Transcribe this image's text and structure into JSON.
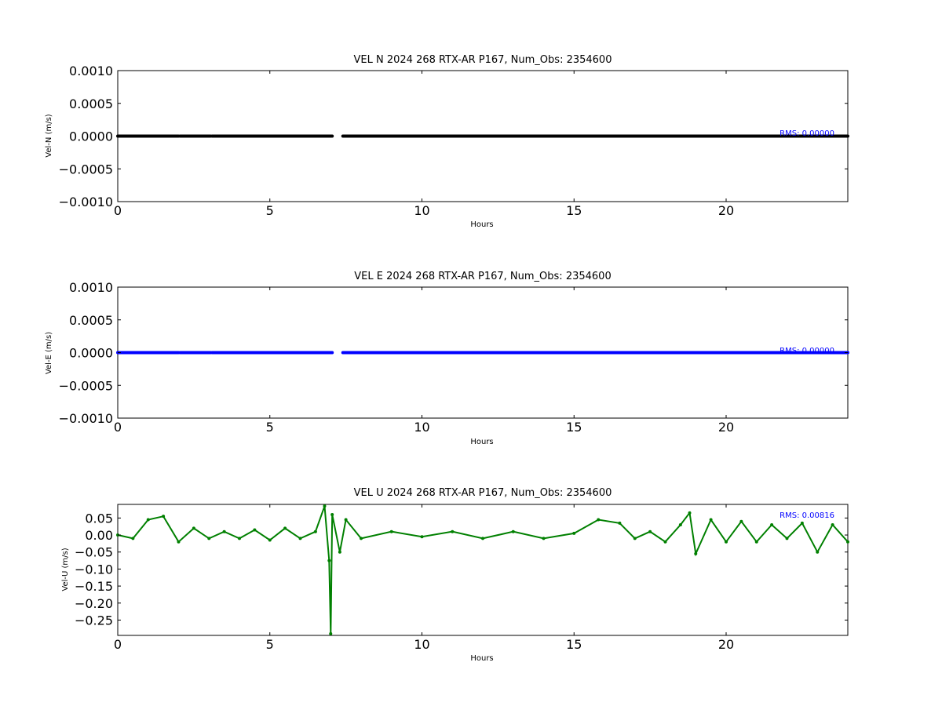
{
  "chart_data": [
    {
      "type": "scatter",
      "title": "VEL N 2024 268 RTX-AR  P167, Num_Obs: 2354600",
      "xlabel": "Hours",
      "ylabel": "Vel-N (m/s)",
      "xlim": [
        0,
        24
      ],
      "ylim": [
        -0.001,
        0.001
      ],
      "xticks": [
        0,
        5,
        10,
        15,
        20
      ],
      "xtick_labels": [
        "0",
        "5",
        "10",
        "15",
        "20"
      ],
      "yticks": [
        0.001,
        0.0005,
        0.0,
        -0.0005,
        -0.001
      ],
      "ytick_labels": [
        "0.0010",
        "0.0005",
        "0.0000",
        "−0.0005",
        "−0.0010"
      ],
      "grid": false,
      "color": "#000000",
      "rms_text": "RMS:  0.00000",
      "rms_color": "#0000ff",
      "series": [
        {
          "x": [
            0.0,
            2.0,
            2.05,
            3.05,
            3.1,
            7.05,
            7.4,
            24.0
          ],
          "y": [
            0,
            0,
            0,
            0,
            0,
            0,
            0,
            0
          ]
        }
      ]
    },
    {
      "type": "scatter",
      "title": "VEL E 2024 268 RTX-AR  P167, Num_Obs: 2354600",
      "xlabel": "Hours",
      "ylabel": "Vel-E (m/s)",
      "xlim": [
        0,
        24
      ],
      "ylim": [
        -0.001,
        0.001
      ],
      "xticks": [
        0,
        5,
        10,
        15,
        20
      ],
      "xtick_labels": [
        "0",
        "5",
        "10",
        "15",
        "20"
      ],
      "yticks": [
        0.001,
        0.0005,
        0.0,
        -0.0005,
        -0.001
      ],
      "ytick_labels": [
        "0.0010",
        "0.0005",
        "0.0000",
        "−0.0005",
        "−0.0010"
      ],
      "grid": false,
      "color": "#0000ff",
      "rms_text": "RMS:  0.00000",
      "rms_color": "#0000ff",
      "series": [
        {
          "x": [
            0.0,
            2.0,
            2.05,
            3.05,
            3.1,
            7.05,
            7.4,
            24.0
          ],
          "y": [
            0,
            0,
            0,
            0,
            0,
            0,
            0,
            0
          ]
        }
      ]
    },
    {
      "type": "line",
      "title": "VEL U 2024 268 RTX-AR  P167, Num_Obs: 2354600",
      "xlabel": "Hours",
      "ylabel": "Vel-U (m/s)",
      "xlim": [
        0,
        24
      ],
      "ylim": [
        -0.295,
        0.09
      ],
      "xticks": [
        0,
        5,
        10,
        15,
        20
      ],
      "xtick_labels": [
        "0",
        "5",
        "10",
        "15",
        "20"
      ],
      "yticks": [
        0.05,
        0.0,
        -0.05,
        -0.1,
        -0.15,
        -0.2,
        -0.25
      ],
      "ytick_labels": [
        "0.05",
        "0.00",
        "−0.05",
        "−0.10",
        "−0.15",
        "−0.20",
        "−0.25"
      ],
      "grid": false,
      "color": "#008000",
      "rms_text": "RMS:  0.00816",
      "rms_color": "#0000ff",
      "series": [
        {
          "x": [
            0.0,
            0.5,
            1.0,
            1.5,
            2.0,
            2.5,
            3.0,
            3.5,
            4.0,
            4.5,
            5.0,
            5.5,
            6.0,
            6.5,
            6.8,
            6.95,
            7.0,
            7.05,
            7.3,
            7.5,
            8.0,
            9.0,
            10.0,
            11.0,
            12.0,
            13.0,
            14.0,
            15.0,
            15.8,
            16.5,
            17.0,
            17.5,
            18.0,
            18.5,
            18.8,
            19.0,
            19.5,
            20.0,
            20.5,
            21.0,
            21.5,
            22.0,
            22.5,
            23.0,
            23.5,
            24.0
          ],
          "y": [
            0.0,
            -0.01,
            0.045,
            0.055,
            -0.02,
            0.02,
            -0.01,
            0.01,
            -0.01,
            0.015,
            -0.015,
            0.02,
            -0.01,
            0.01,
            0.085,
            -0.075,
            -0.29,
            0.06,
            -0.05,
            0.045,
            -0.01,
            0.01,
            -0.005,
            0.01,
            -0.01,
            0.01,
            -0.01,
            0.005,
            0.045,
            0.035,
            -0.01,
            0.01,
            -0.02,
            0.03,
            0.065,
            -0.055,
            0.045,
            -0.02,
            0.04,
            -0.02,
            0.03,
            -0.01,
            0.035,
            -0.05,
            0.03,
            -0.02
          ]
        }
      ]
    }
  ]
}
